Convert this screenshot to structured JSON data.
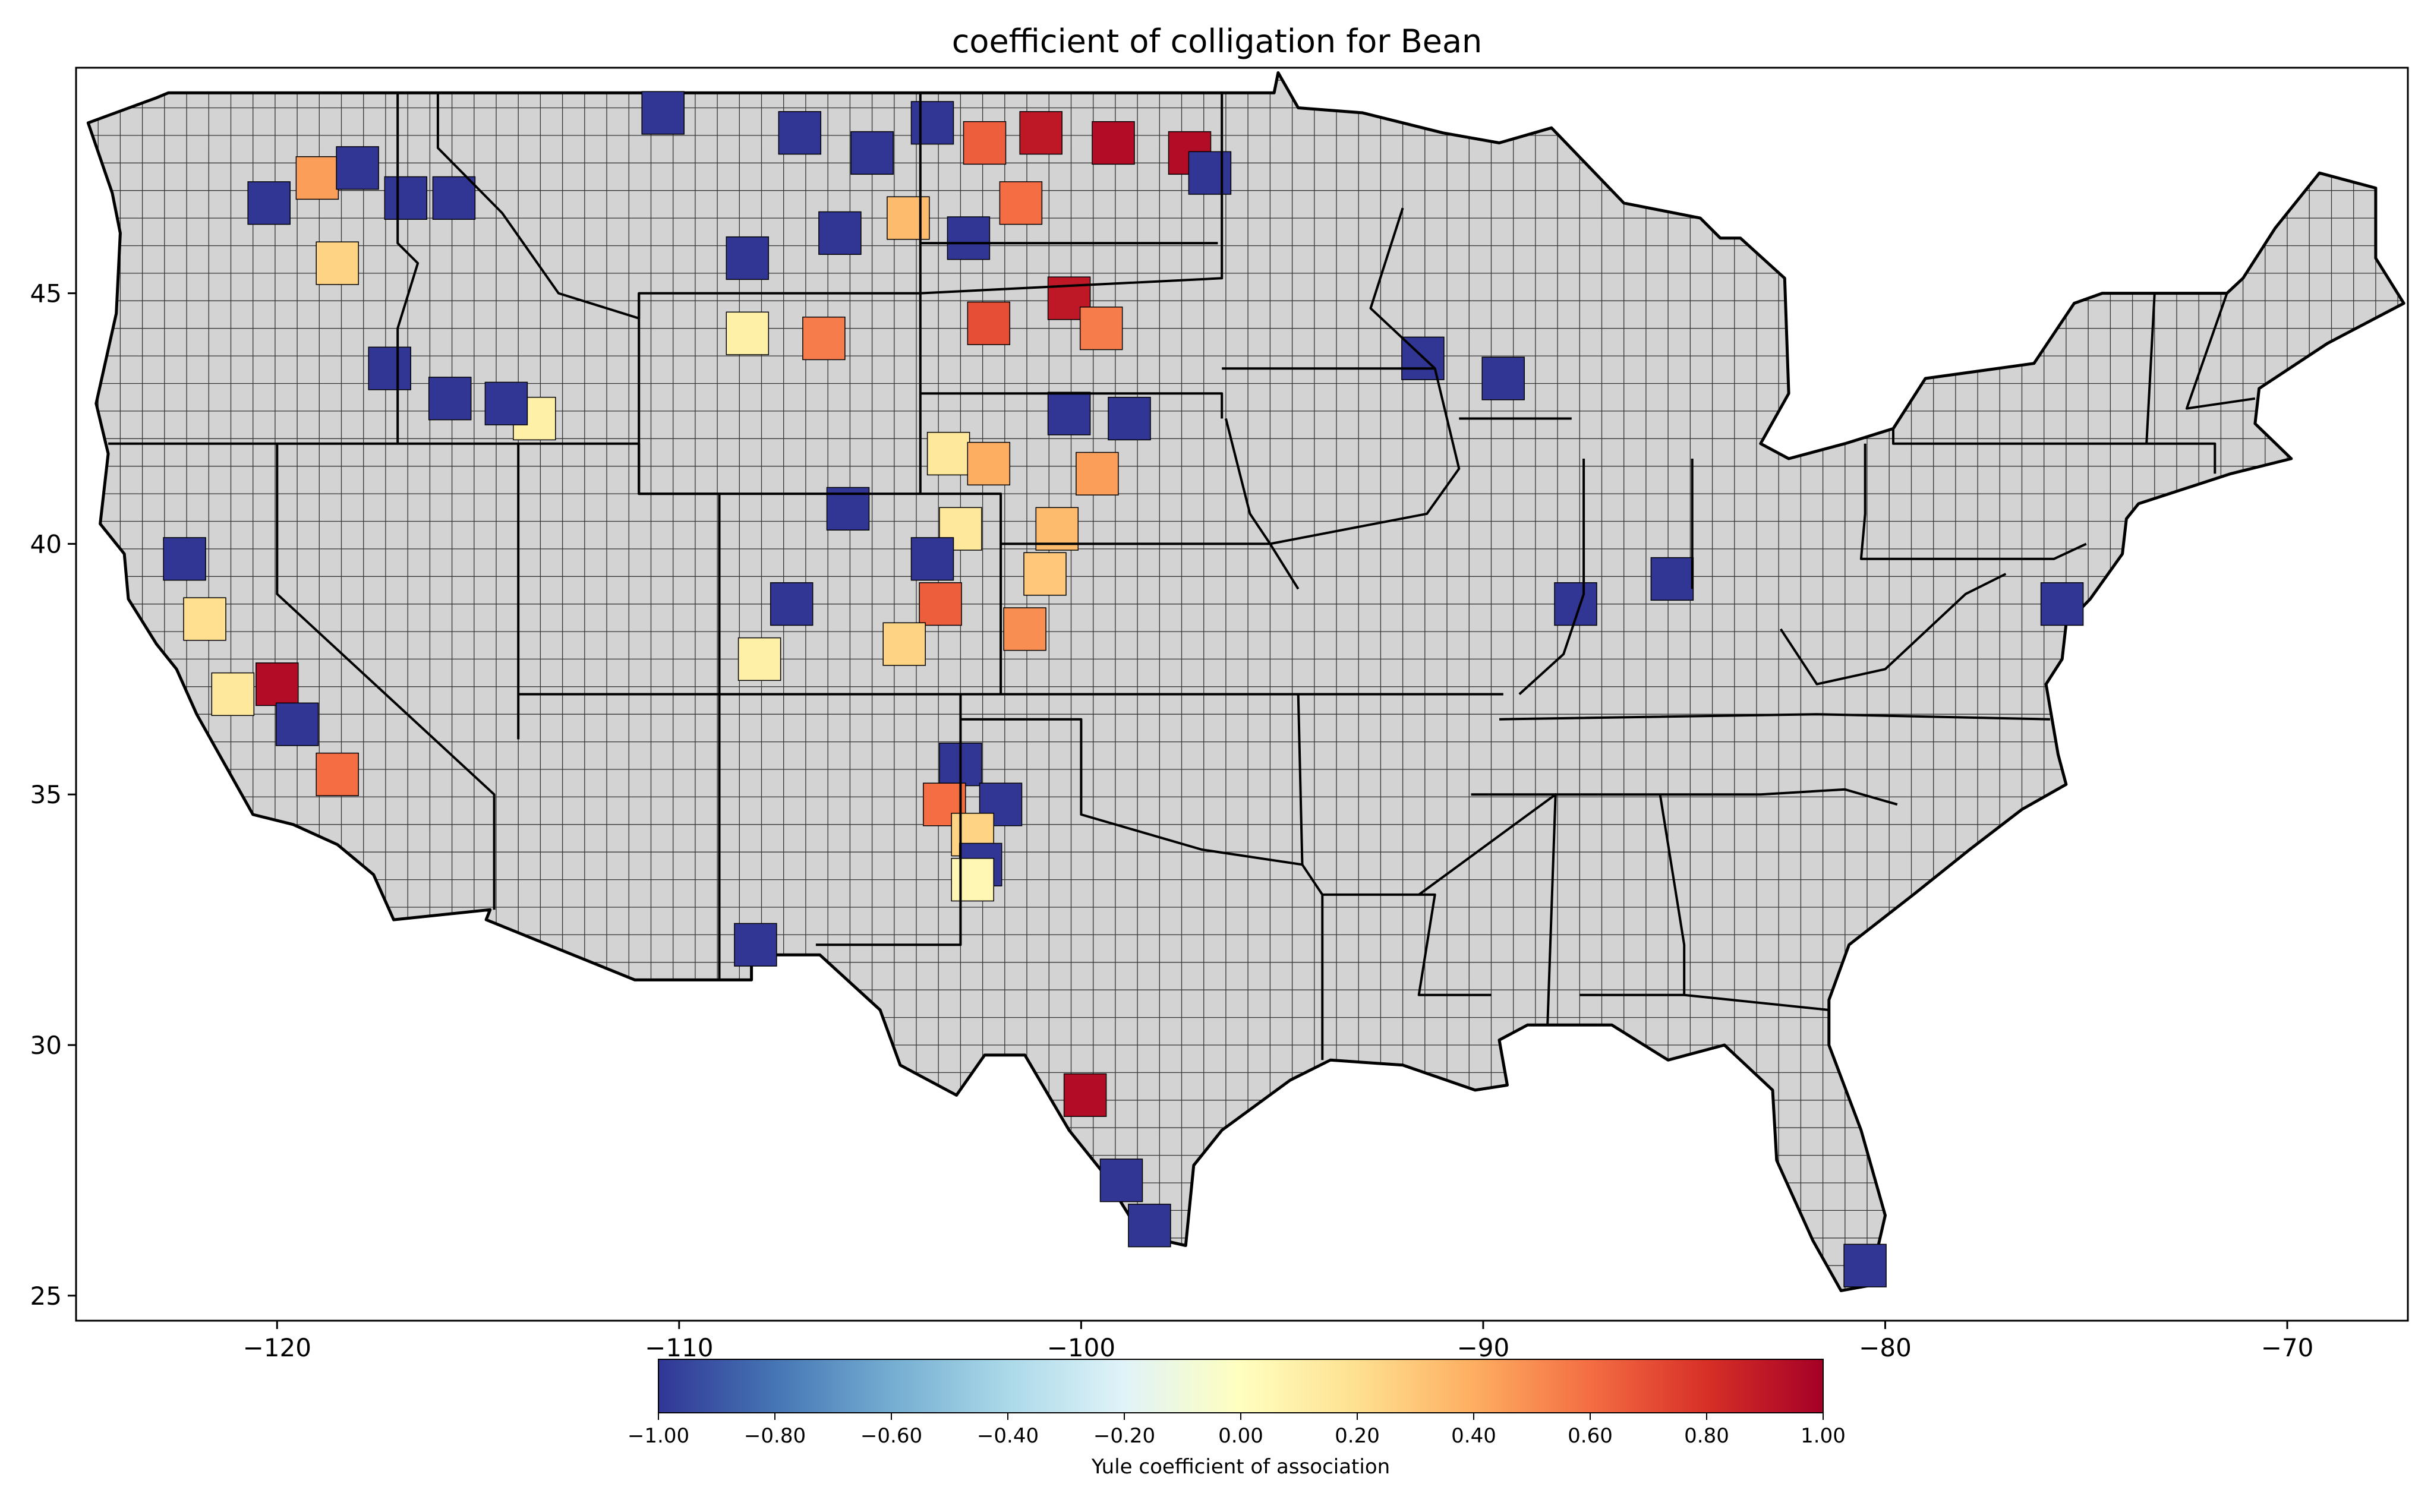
{
  "title": "coefficient of colligation for Bean",
  "map": {
    "projection": "PlateCarree lon/lat",
    "lon_range": [
      -125,
      -67
    ],
    "lat_range": [
      24.5,
      49.5
    ],
    "x_ticks": [
      -120,
      -110,
      -100,
      -90,
      -80,
      -70
    ],
    "y_ticks": [
      25,
      30,
      35,
      40,
      45
    ],
    "x_tick_labels": [
      "−120",
      "−110",
      "−100",
      "−90",
      "−80",
      "−70"
    ],
    "y_tick_labels": [
      "25",
      "30",
      "35",
      "40",
      "45"
    ],
    "no_data_color": "#d3d3d3",
    "county_border_color": "#000000",
    "state_border_color": "#000000"
  },
  "colorbar": {
    "label": "Yule coefficient of association",
    "colormap": "RdYlBu_r",
    "range": [
      -1,
      1
    ],
    "ticks": [
      -1.0,
      -0.8,
      -0.6,
      -0.4,
      -0.2,
      0.0,
      0.2,
      0.4,
      0.6,
      0.8,
      1.0
    ],
    "tick_labels": [
      "−1.00",
      "−0.80",
      "−0.60",
      "−0.40",
      "−0.20",
      "0.00",
      "0.20",
      "0.40",
      "0.60",
      "0.80",
      "1.00"
    ],
    "stops": [
      "#313695",
      "#4575b4",
      "#74add1",
      "#abd9e9",
      "#e0f3f8",
      "#ffffbf",
      "#fee090",
      "#fdae61",
      "#f46d43",
      "#d73027",
      "#a50026"
    ]
  },
  "chart_data": {
    "type": "choropleth",
    "value_name": "Yule coefficient of association",
    "regions": [
      {
        "lon": -120.2,
        "lat": 46.8,
        "value": -1.0
      },
      {
        "lon": -119.0,
        "lat": 47.3,
        "value": 0.45
      },
      {
        "lon": -118.0,
        "lat": 47.5,
        "value": -1.0
      },
      {
        "lon": -116.8,
        "lat": 46.9,
        "value": -1.0
      },
      {
        "lon": -115.6,
        "lat": 46.9,
        "value": -1.0
      },
      {
        "lon": -118.5,
        "lat": 45.6,
        "value": 0.25
      },
      {
        "lon": -117.2,
        "lat": 43.5,
        "value": -1.0
      },
      {
        "lon": -115.7,
        "lat": 42.9,
        "value": -1.0
      },
      {
        "lon": -113.6,
        "lat": 42.5,
        "value": 0.1
      },
      {
        "lon": -114.3,
        "lat": 42.8,
        "value": -1.0
      },
      {
        "lon": -110.4,
        "lat": 48.6,
        "value": -1.0
      },
      {
        "lon": -107.0,
        "lat": 48.2,
        "value": -1.0
      },
      {
        "lon": -105.2,
        "lat": 47.8,
        "value": -1.0
      },
      {
        "lon": -106.0,
        "lat": 46.2,
        "value": -1.0
      },
      {
        "lon": -108.3,
        "lat": 45.7,
        "value": -1.0
      },
      {
        "lon": -104.3,
        "lat": 46.5,
        "value": 0.35
      },
      {
        "lon": -108.3,
        "lat": 44.2,
        "value": 0.1
      },
      {
        "lon": -106.4,
        "lat": 44.1,
        "value": 0.55
      },
      {
        "lon": -103.7,
        "lat": 48.4,
        "value": -1.0
      },
      {
        "lon": -102.4,
        "lat": 48.0,
        "value": 0.65
      },
      {
        "lon": -101.0,
        "lat": 48.2,
        "value": 0.9
      },
      {
        "lon": -99.2,
        "lat": 48.0,
        "value": 0.95
      },
      {
        "lon": -97.3,
        "lat": 47.8,
        "value": 0.95
      },
      {
        "lon": -96.8,
        "lat": 47.4,
        "value": -1.0
      },
      {
        "lon": -101.5,
        "lat": 46.8,
        "value": 0.6
      },
      {
        "lon": -102.8,
        "lat": 46.1,
        "value": -1.0
      },
      {
        "lon": -100.3,
        "lat": 44.9,
        "value": 0.9
      },
      {
        "lon": -99.5,
        "lat": 44.3,
        "value": 0.55
      },
      {
        "lon": -102.3,
        "lat": 44.4,
        "value": 0.7
      },
      {
        "lon": -100.3,
        "lat": 42.6,
        "value": -1.0
      },
      {
        "lon": -98.8,
        "lat": 42.5,
        "value": -1.0
      },
      {
        "lon": -103.3,
        "lat": 41.8,
        "value": 0.15
      },
      {
        "lon": -102.3,
        "lat": 41.6,
        "value": 0.4
      },
      {
        "lon": -99.6,
        "lat": 41.4,
        "value": 0.45
      },
      {
        "lon": -100.6,
        "lat": 40.3,
        "value": 0.35
      },
      {
        "lon": -103.0,
        "lat": 40.3,
        "value": 0.15
      },
      {
        "lon": -105.8,
        "lat": 40.7,
        "value": -1.0
      },
      {
        "lon": -103.7,
        "lat": 39.7,
        "value": -1.0
      },
      {
        "lon": -103.5,
        "lat": 38.8,
        "value": 0.65
      },
      {
        "lon": -104.4,
        "lat": 38.0,
        "value": 0.25
      },
      {
        "lon": -101.4,
        "lat": 38.3,
        "value": 0.5
      },
      {
        "lon": -100.9,
        "lat": 39.4,
        "value": 0.3
      },
      {
        "lon": -108.0,
        "lat": 37.7,
        "value": 0.1
      },
      {
        "lon": -107.2,
        "lat": 38.8,
        "value": -1.0
      },
      {
        "lon": -103.0,
        "lat": 35.6,
        "value": -1.0
      },
      {
        "lon": -103.4,
        "lat": 34.8,
        "value": 0.6
      },
      {
        "lon": -102.0,
        "lat": 34.8,
        "value": -1.0
      },
      {
        "lon": -102.7,
        "lat": 34.2,
        "value": 0.25
      },
      {
        "lon": -102.5,
        "lat": 33.6,
        "value": -1.0
      },
      {
        "lon": -102.7,
        "lat": 33.3,
        "value": 0.05
      },
      {
        "lon": -122.3,
        "lat": 39.7,
        "value": -1.0
      },
      {
        "lon": -121.8,
        "lat": 38.5,
        "value": 0.2
      },
      {
        "lon": -121.1,
        "lat": 37.0,
        "value": 0.15
      },
      {
        "lon": -120.0,
        "lat": 37.2,
        "value": 0.95
      },
      {
        "lon": -119.5,
        "lat": 36.4,
        "value": -1.0
      },
      {
        "lon": -118.5,
        "lat": 35.4,
        "value": 0.6
      },
      {
        "lon": -108.1,
        "lat": 32.0,
        "value": -1.0
      },
      {
        "lon": -99.9,
        "lat": 29.0,
        "value": 0.95
      },
      {
        "lon": -99.0,
        "lat": 27.3,
        "value": -1.0
      },
      {
        "lon": -98.3,
        "lat": 26.4,
        "value": -1.0
      },
      {
        "lon": -91.5,
        "lat": 43.7,
        "value": -1.0
      },
      {
        "lon": -89.5,
        "lat": 43.3,
        "value": -1.0
      },
      {
        "lon": -87.7,
        "lat": 38.8,
        "value": -1.0
      },
      {
        "lon": -85.3,
        "lat": 39.3,
        "value": -1.0
      },
      {
        "lon": -75.6,
        "lat": 38.8,
        "value": -1.0
      },
      {
        "lon": -80.5,
        "lat": 25.6,
        "value": -1.0
      }
    ]
  }
}
